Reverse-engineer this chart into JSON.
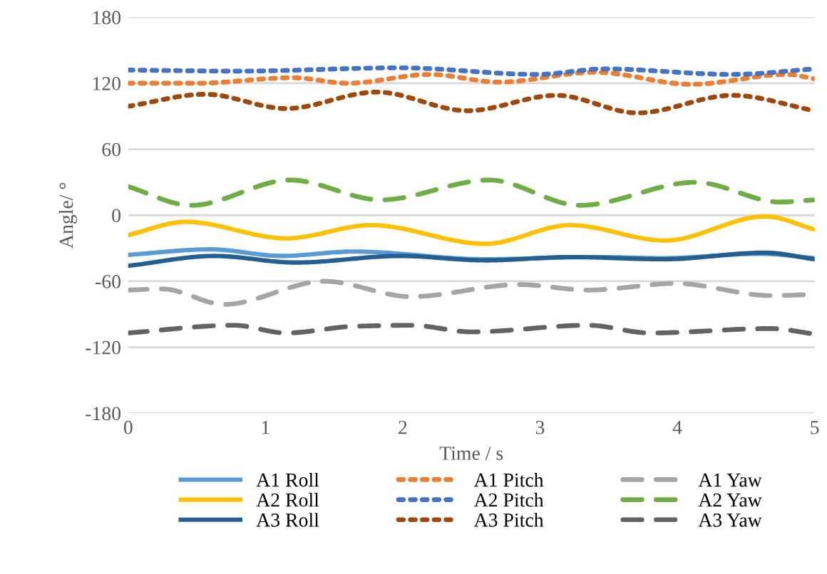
{
  "chart_data": {
    "type": "line",
    "xlabel": "Time / s",
    "ylabel": "Angle/ °",
    "xlim": [
      0,
      5
    ],
    "xticks": [
      0,
      1,
      2,
      3,
      4,
      5
    ],
    "ylim": [
      -180,
      180
    ],
    "yticks": [
      -180,
      -120,
      -60,
      0,
      60,
      120,
      180
    ],
    "grid": "y",
    "legend": "bottom",
    "series": [
      {
        "name": "A1 Roll",
        "color": "#5b9bd5",
        "line_style": "solid",
        "x": [
          0,
          0.6,
          1.12,
          1.64,
          2.6,
          3.4,
          3.9,
          4.6,
          5
        ],
        "values": [
          -36,
          -31,
          -37,
          -33,
          -40,
          -38,
          -39,
          -35,
          -39
        ]
      },
      {
        "name": "A1 Pitch",
        "color": "#ed7d31",
        "line_style": "dotted",
        "x": [
          0,
          0.5,
          1.2,
          1.6,
          2.2,
          2.7,
          3.4,
          4.1,
          4.8,
          5
        ],
        "values": [
          120,
          120,
          125,
          120,
          128,
          121,
          130,
          119,
          128,
          124
        ]
      },
      {
        "name": "A1 Yaw",
        "color": "#a5a5a5",
        "line_style": "dashed",
        "x": [
          0,
          0.25,
          0.7,
          1.43,
          2.06,
          2.85,
          3.35,
          3.99,
          4.68,
          5
        ],
        "values": [
          -68,
          -67,
          -81,
          -60,
          -74,
          -63,
          -68,
          -62,
          -73,
          -72
        ]
      },
      {
        "name": "A2 Roll",
        "color": "#ffc000",
        "line_style": "solid",
        "x": [
          0,
          0.42,
          1.15,
          1.77,
          2.6,
          3.22,
          3.91,
          4.64,
          5
        ],
        "values": [
          -18,
          -6,
          -21,
          -9,
          -26,
          -9,
          -23,
          -1,
          -13
        ]
      },
      {
        "name": "A2 Pitch",
        "color": "#4472c4",
        "line_style": "dotted",
        "x": [
          0,
          0.8,
          1.98,
          2.98,
          3.47,
          4.4,
          5
        ],
        "values": [
          132,
          131,
          134,
          128,
          133,
          128,
          133
        ]
      },
      {
        "name": "A2 Yaw",
        "color": "#70ad47",
        "line_style": "dashed",
        "x": [
          0,
          0.46,
          1.18,
          1.84,
          2.63,
          3.29,
          4.13,
          4.75,
          5
        ],
        "values": [
          26,
          9,
          32,
          14,
          32,
          9,
          30,
          12,
          14
        ]
      },
      {
        "name": "A3 Roll",
        "color": "#255e91",
        "line_style": "solid",
        "x": [
          0,
          0.63,
          1.22,
          1.98,
          2.6,
          3.22,
          3.9,
          4.64,
          5
        ],
        "values": [
          -46,
          -37,
          -43,
          -37,
          -41,
          -38,
          -40,
          -34,
          -40
        ]
      },
      {
        "name": "A3 Pitch",
        "color": "#9e480e",
        "line_style": "dotted",
        "x": [
          0,
          0.56,
          1.15,
          1.81,
          2.47,
          3.12,
          3.71,
          4.4,
          5
        ],
        "values": [
          99,
          110,
          97,
          112,
          95,
          109,
          93,
          109,
          95
        ]
      },
      {
        "name": "A3 Yaw",
        "color": "#636363",
        "line_style": "dashed",
        "x": [
          0,
          0.77,
          1.15,
          1.64,
          2.06,
          2.5,
          3.35,
          3.8,
          4.68,
          5
        ],
        "values": [
          -107,
          -100,
          -107,
          -101,
          -100,
          -106,
          -100,
          -107,
          -103,
          -108
        ]
      }
    ]
  }
}
